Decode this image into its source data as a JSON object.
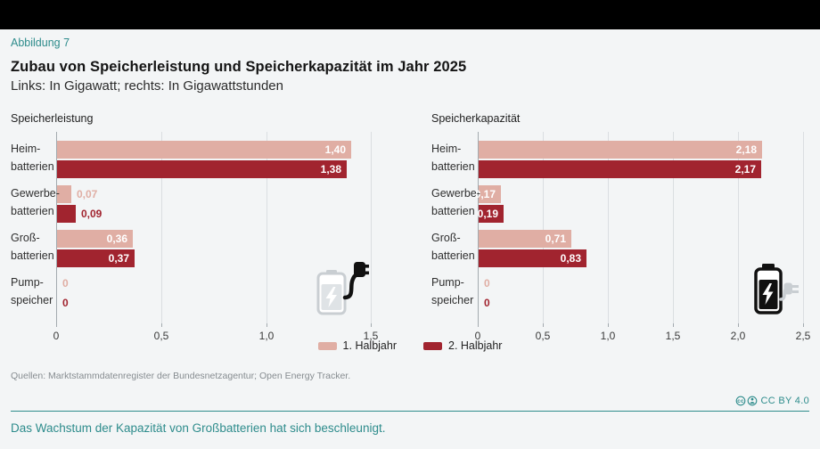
{
  "header": {
    "figure_label": "Abbildung 7",
    "title": "Zubau von Speicherleistung und Speicherkapazität im Jahr 2025",
    "subtitle": "Links: In Gigawatt; rechts: In Gigawattstunden"
  },
  "colors": {
    "background": "#f3f5f6",
    "top_bar": "#000000",
    "accent_teal": "#2e8c8c",
    "series_1": "#e0aea4",
    "series_2": "#a1242f",
    "gridline": "#dadee1",
    "axis": "#a3aaaf"
  },
  "legend": {
    "items": [
      {
        "label": "1. Halbjahr",
        "color": "#e0aea4"
      },
      {
        "label": "2. Halbjahr",
        "color": "#a1242f"
      }
    ]
  },
  "chart_data": [
    {
      "type": "bar",
      "orientation": "horizontal",
      "title": "Speicherleistung",
      "unit": "Gigawatt",
      "categories": [
        {
          "line1": "Heim-",
          "line2": "batterien"
        },
        {
          "line1": "Gewerbe-",
          "line2": "batterien"
        },
        {
          "line1": "Groß-",
          "line2": "batterien"
        },
        {
          "line1": "Pump-",
          "line2": "speicher"
        }
      ],
      "series": [
        {
          "name": "1. Halbjahr",
          "color": "#e0aea4",
          "values": [
            1.4,
            0.07,
            0.36,
            0
          ],
          "labels": [
            "1,40",
            "0,07",
            "0,36",
            "0"
          ]
        },
        {
          "name": "2. Halbjahr",
          "color": "#a1242f",
          "values": [
            1.38,
            0.09,
            0.37,
            0
          ],
          "labels": [
            "1,38",
            "0,09",
            "0,37",
            "0"
          ]
        }
      ],
      "xlim": [
        0,
        1.5
      ],
      "xticks": [
        {
          "label": "0",
          "value": 0.0
        },
        {
          "label": "0,5",
          "value": 0.5
        },
        {
          "label": "1,0",
          "value": 1.0
        },
        {
          "label": "1,5",
          "value": 1.5
        }
      ],
      "grid": true,
      "legend_position": "bottom"
    },
    {
      "type": "bar",
      "orientation": "horizontal",
      "title": "Speicherkapazität",
      "unit": "Gigawattstunden",
      "categories": [
        {
          "line1": "Heim-",
          "line2": "batterien"
        },
        {
          "line1": "Gewerbe-",
          "line2": "batterien"
        },
        {
          "line1": "Groß-",
          "line2": "batterien"
        },
        {
          "line1": "Pump-",
          "line2": "speicher"
        }
      ],
      "series": [
        {
          "name": "1. Halbjahr",
          "color": "#e0aea4",
          "values": [
            2.18,
            0.17,
            0.71,
            0
          ],
          "labels": [
            "2,18",
            "0,17",
            "0,71",
            "0"
          ]
        },
        {
          "name": "2. Halbjahr",
          "color": "#a1242f",
          "values": [
            2.17,
            0.19,
            0.83,
            0
          ],
          "labels": [
            "2,17",
            "0,19",
            "0,83",
            "0"
          ]
        }
      ],
      "xlim": [
        0,
        2.5
      ],
      "xticks": [
        {
          "label": "0",
          "value": 0.0
        },
        {
          "label": "0,5",
          "value": 0.5
        },
        {
          "label": "1,0",
          "value": 1.0
        },
        {
          "label": "1,5",
          "value": 1.5
        },
        {
          "label": "2,0",
          "value": 2.0
        },
        {
          "label": "2,5",
          "value": 2.5
        }
      ],
      "grid": true,
      "legend_position": "bottom"
    }
  ],
  "icons": {
    "left_chart": "battery-charging-plug-icon",
    "right_chart": "battery-charging-plug-icon",
    "license": [
      "cc-circle-icon",
      "by-person-icon"
    ]
  },
  "footer": {
    "source": "Quellen: Marktstammdatenregister der Bundesnetzagentur; Open Energy Tracker.",
    "license_label": "CC BY 4.0",
    "caption": "Das Wachstum der Kapazität von Großbatterien hat sich beschleunigt."
  }
}
